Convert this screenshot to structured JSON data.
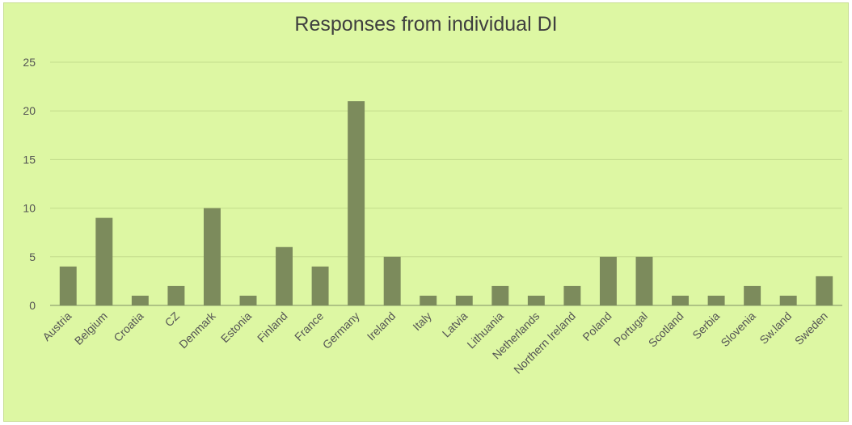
{
  "chart_data": {
    "type": "bar",
    "title": "Responses from individual DI",
    "xlabel": "",
    "ylabel": "",
    "ylim": [
      0,
      25
    ],
    "yticks": [
      0,
      5,
      10,
      15,
      20,
      25
    ],
    "grid": true,
    "legend": "none",
    "categories": [
      "Austria",
      "Belgium",
      "Croatia",
      "CZ",
      "Denmark",
      "Estonia",
      "Finland",
      "France",
      "Germany",
      "Ireland",
      "Italy",
      "Latvia",
      "Lithuania",
      "Netherlands",
      "Northern Ireland",
      "Poland",
      "Portugal",
      "Scotland",
      "Serbia",
      "Slovenia",
      "Sw.land",
      "Sweden"
    ],
    "values": [
      4,
      9,
      1,
      2,
      10,
      1,
      6,
      4,
      21,
      5,
      1,
      1,
      2,
      1,
      2,
      5,
      5,
      1,
      1,
      2,
      1,
      3
    ],
    "colors": {
      "background": "#ddf7a3",
      "bar": "#7c8b5c",
      "grid": "#c3dc8c",
      "axis": "#9fb27a"
    }
  }
}
